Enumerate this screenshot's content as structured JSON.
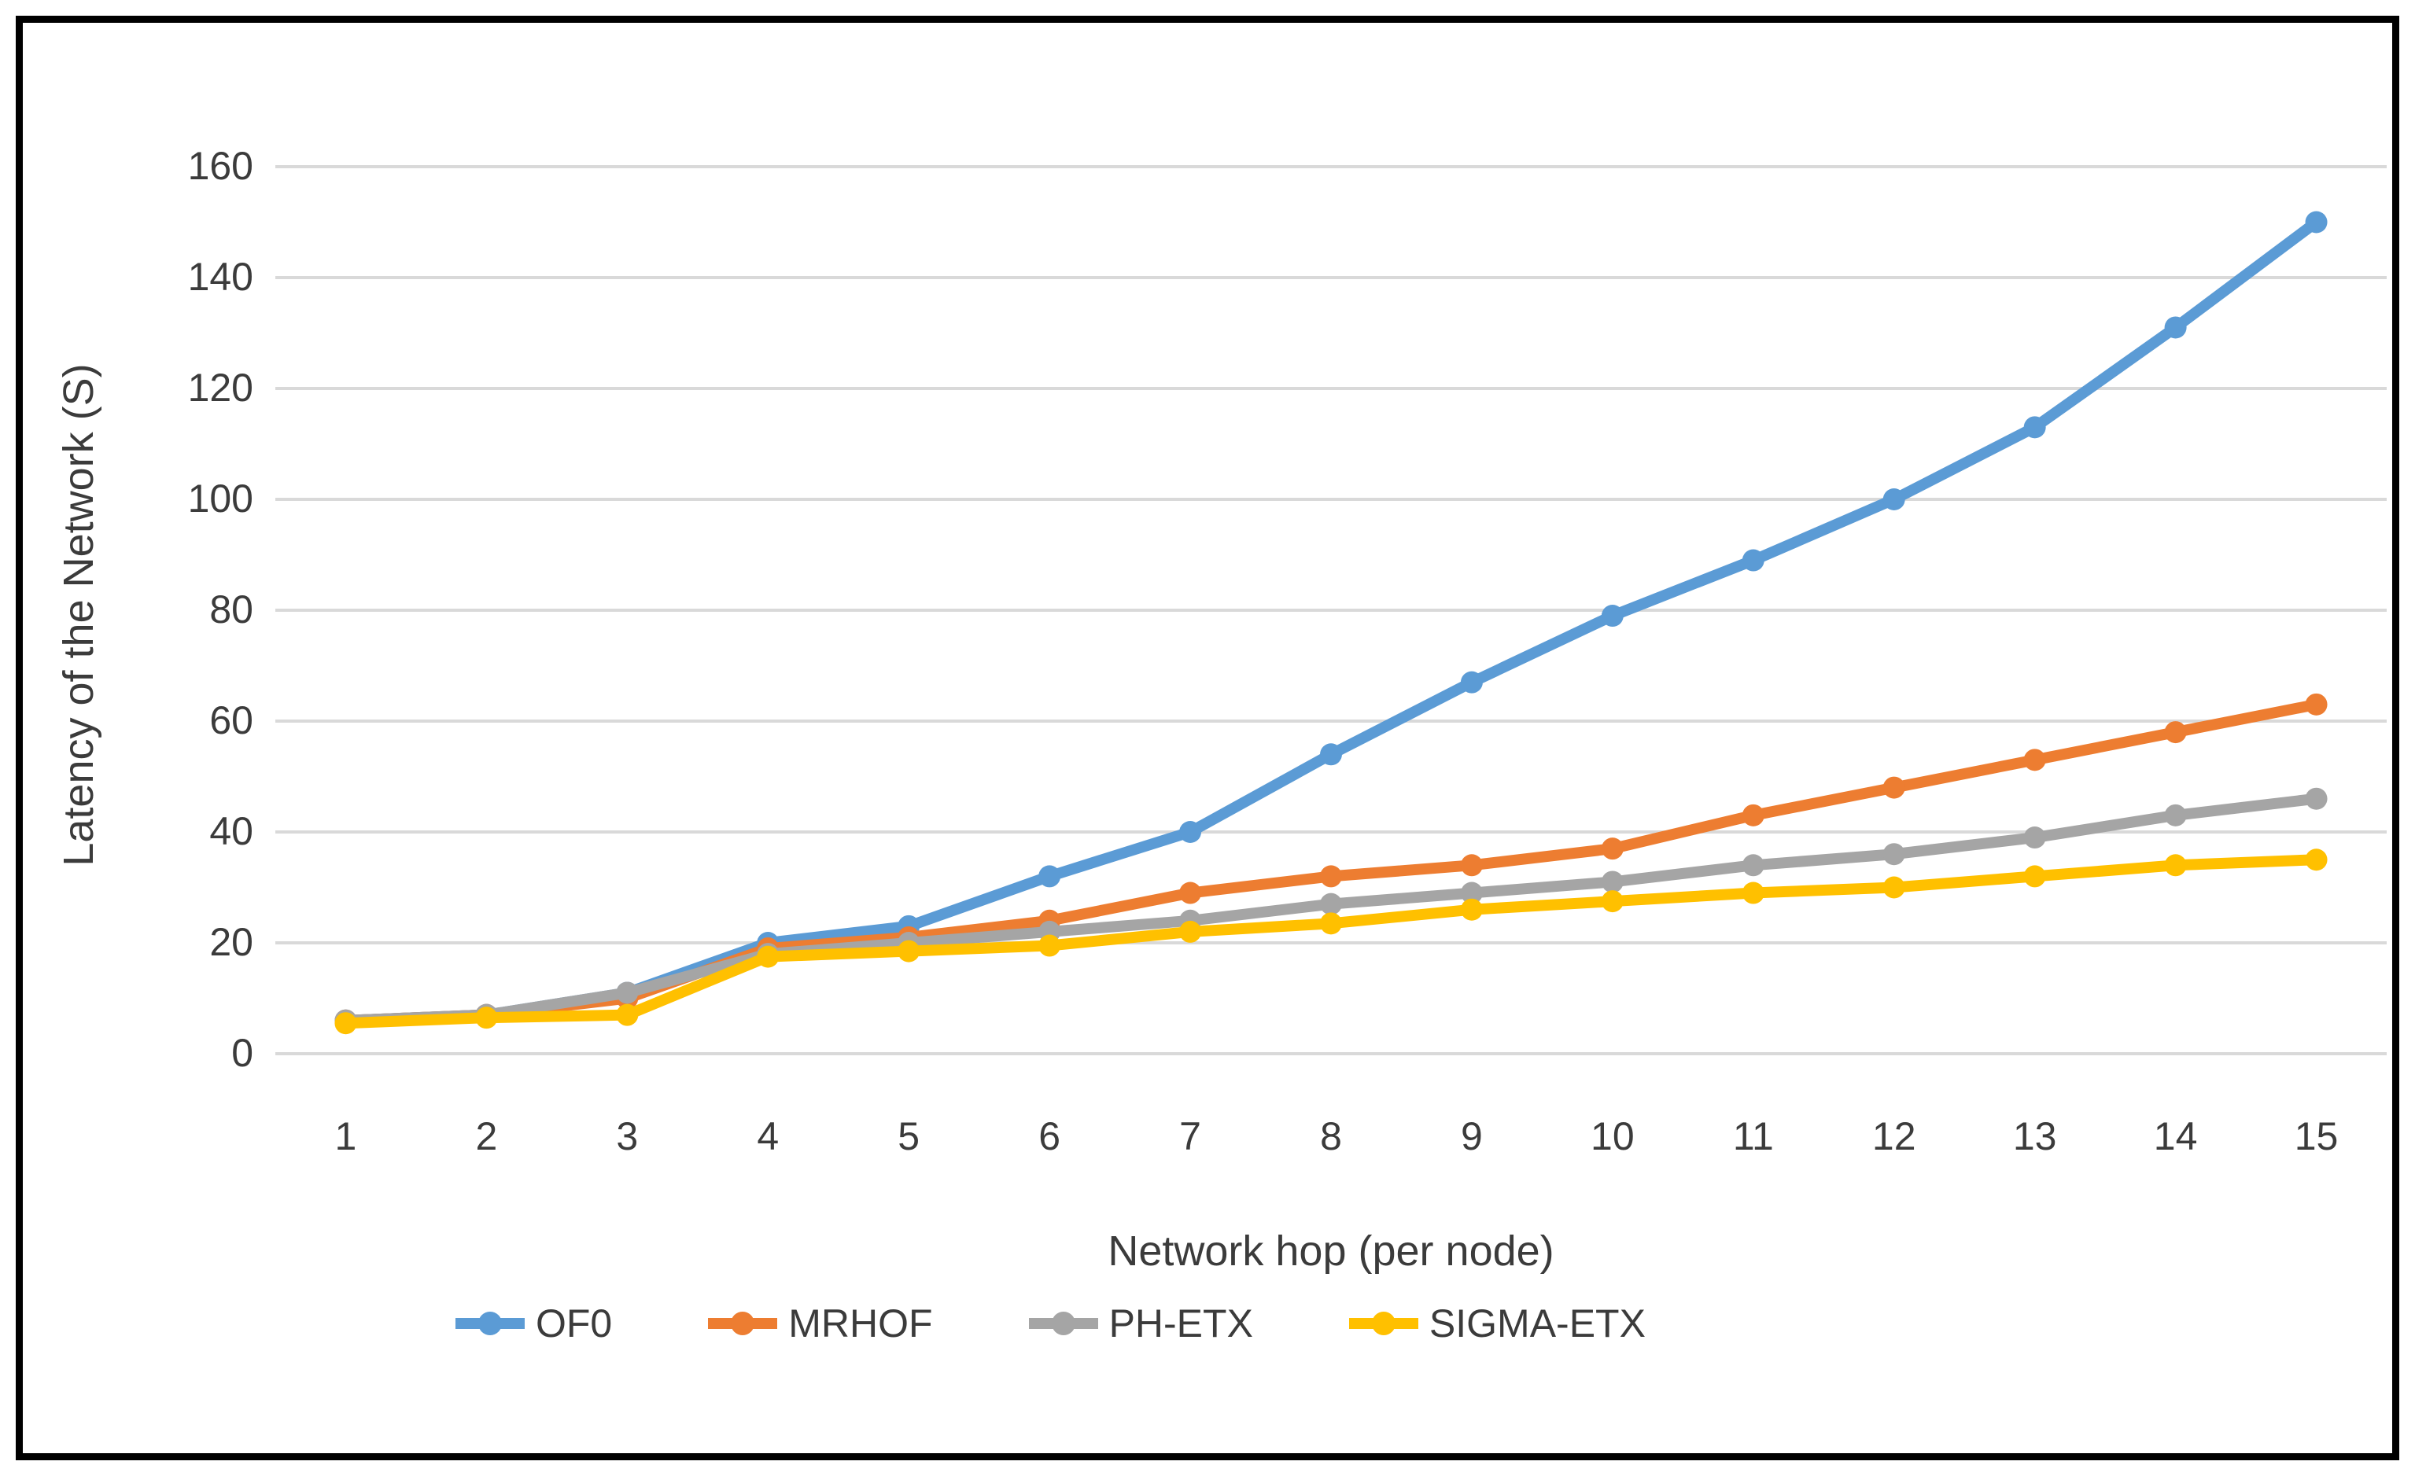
{
  "chart_data": {
    "type": "line",
    "title": "",
    "xlabel": "Network hop (per node)",
    "ylabel": "Latency of the Network (S)",
    "categories": [
      1,
      2,
      3,
      4,
      5,
      6,
      7,
      8,
      9,
      10,
      11,
      12,
      13,
      14,
      15
    ],
    "series": [
      {
        "name": "OF0",
        "color": "#5B9BD5",
        "values": [
          6,
          7,
          11,
          20,
          23,
          32,
          40,
          54,
          67,
          79,
          89,
          100,
          113,
          131,
          150
        ]
      },
      {
        "name": "MRHOF",
        "color": "#ED7D31",
        "values": [
          6,
          7,
          10,
          19,
          21,
          24,
          29,
          32,
          34,
          37,
          43,
          48,
          53,
          58,
          63
        ]
      },
      {
        "name": "PH-ETX",
        "color": "#A5A5A5",
        "values": [
          6,
          7,
          11,
          18,
          20,
          22,
          24,
          27,
          29,
          31,
          34,
          36,
          39,
          43,
          46
        ]
      },
      {
        "name": "SIGMA-ETX",
        "color": "#FFC000",
        "values": [
          5.5,
          6.5,
          7,
          17.5,
          18.5,
          19.5,
          22,
          23.5,
          26,
          27.5,
          29,
          30,
          32,
          34,
          35
        ]
      }
    ],
    "ylim": [
      0,
      160
    ],
    "ytick_step": 20,
    "grid": "horizontal",
    "legend_position": "bottom",
    "marker": "circle"
  },
  "colors": {
    "background": "#FFFFFF",
    "border": "#000000",
    "gridline": "#D9D9D9",
    "axis_text": "#3B3B3B"
  }
}
